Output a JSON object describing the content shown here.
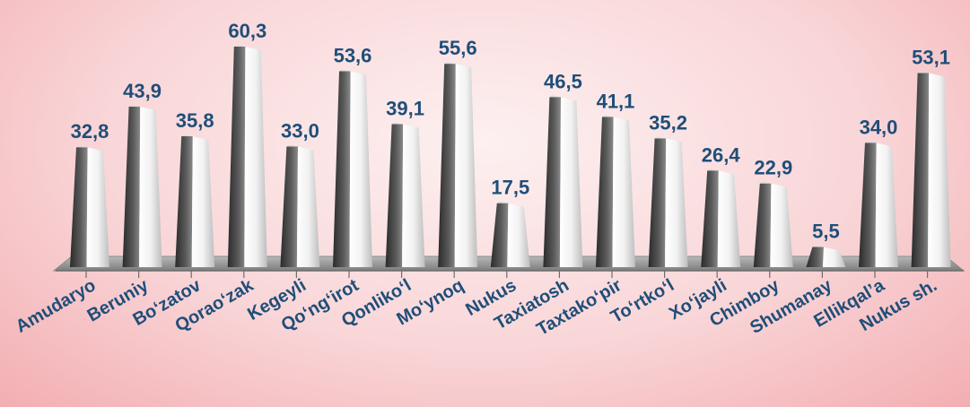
{
  "chart_data": {
    "type": "bar",
    "style": "3d-pyramid",
    "categories": [
      "Amudaryo",
      "Beruniy",
      "Bo‘zatov",
      "Qorao‘zak",
      "Kegeyli",
      "Qo‘ng‘irot",
      "Qonliko‘l",
      "Mo‘ynoq",
      "Nukus",
      "Taxiatosh",
      "Taxtako‘pir",
      "To‘rtko‘l",
      "Xo‘jayli",
      "Chimboy",
      "Shumanay",
      "Ellikqal’a",
      "Nukus sh."
    ],
    "values": [
      32.8,
      43.9,
      35.8,
      60.3,
      33.0,
      53.6,
      39.1,
      55.6,
      17.5,
      46.5,
      41.1,
      35.2,
      26.4,
      22.9,
      5.5,
      34.0,
      53.1
    ],
    "value_labels": [
      "32,8",
      "43,9",
      "35,8",
      "60,3",
      "33,0",
      "53,6",
      "39,1",
      "55,6",
      "17,5",
      "46,5",
      "41,1",
      "35,2",
      "26,4",
      "22,9",
      "5,5",
      "34,0",
      "53,1"
    ],
    "ylim": [
      0,
      60.3
    ],
    "grid": false,
    "legend": "none",
    "colors": {
      "label": "#1f4e79",
      "bar_dark": "#3a3a3a",
      "bar_light": "#ffffff",
      "floor": "#9a9a9a"
    }
  }
}
